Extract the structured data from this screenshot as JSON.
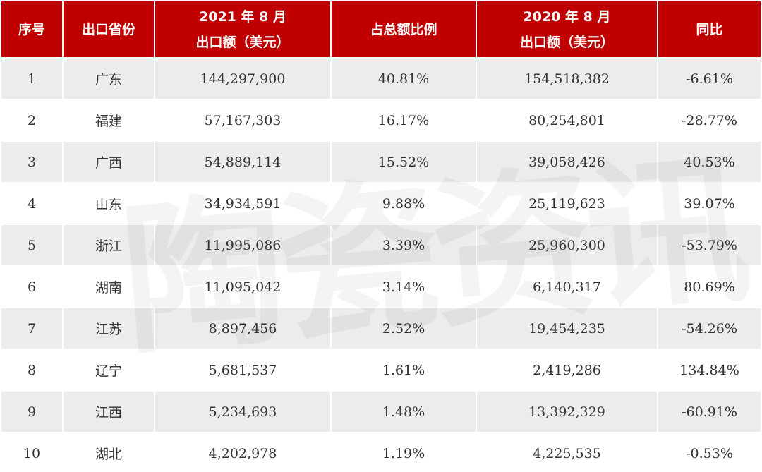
{
  "watermark": "陶瓷资讯",
  "header": {
    "col1": "序号",
    "col2": "出口省份",
    "col3_line1": "2021 年 8 月",
    "col3_line2": "出口额（美元）",
    "col4": "占总额比例",
    "col5_line1": "2020 年 8 月",
    "col5_line2": "出口额（美元）",
    "col6": "同比"
  },
  "rows": [
    {
      "no": "1",
      "province": "广东",
      "export_2021": "144,297,900",
      "share": "40.81%",
      "export_2020": "154,518,382",
      "yoy": "-6.61%"
    },
    {
      "no": "2",
      "province": "福建",
      "export_2021": "57,167,303",
      "share": "16.17%",
      "export_2020": "80,254,801",
      "yoy": "-28.77%"
    },
    {
      "no": "3",
      "province": "广西",
      "export_2021": "54,889,114",
      "share": "15.52%",
      "export_2020": "39,058,426",
      "yoy": "40.53%"
    },
    {
      "no": "4",
      "province": "山东",
      "export_2021": "34,934,591",
      "share": "9.88%",
      "export_2020": "25,119,623",
      "yoy": "39.07%"
    },
    {
      "no": "5",
      "province": "浙江",
      "export_2021": "11,995,086",
      "share": "3.39%",
      "export_2020": "25,960,300",
      "yoy": "-53.79%"
    },
    {
      "no": "6",
      "province": "湖南",
      "export_2021": "11,095,042",
      "share": "3.14%",
      "export_2020": "6,140,317",
      "yoy": "80.69%"
    },
    {
      "no": "7",
      "province": "江苏",
      "export_2021": "8,897,456",
      "share": "2.52%",
      "export_2020": "19,454,235",
      "yoy": "-54.26%"
    },
    {
      "no": "8",
      "province": "辽宁",
      "export_2021": "5,681,537",
      "share": "1.61%",
      "export_2020": "2,419,286",
      "yoy": "134.84%"
    },
    {
      "no": "9",
      "province": "江西",
      "export_2021": "5,234,693",
      "share": "1.48%",
      "export_2020": "13,392,329",
      "yoy": "-60.91%"
    },
    {
      "no": "10",
      "province": "湖北",
      "export_2021": "4,202,978",
      "share": "1.19%",
      "export_2020": "4,225,535",
      "yoy": "-0.53%"
    }
  ],
  "colors": {
    "header_bg": "#c00000",
    "header_text": "#ffffff",
    "row_alt_bg": "#ececec"
  }
}
